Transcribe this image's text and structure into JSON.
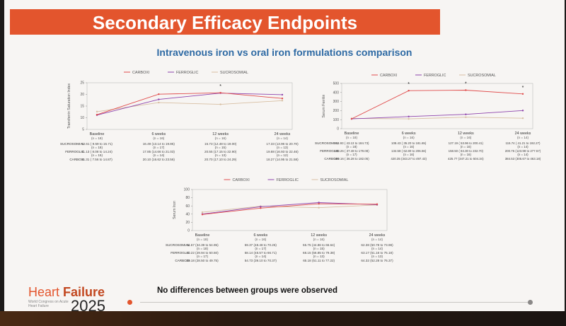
{
  "title": "Secondary Efficacy Endpoints",
  "subtitle": "Intravenous iron vs oral iron formulations comparison",
  "footer_message": "No differences between groups were observed",
  "logo": {
    "line1a": "Heart ",
    "line1b": "Failure",
    "small": "World Congress on Acute Heart Failure",
    "year": "2025"
  },
  "colors": {
    "accent": "#e3552d",
    "subtitle": "#2e6aa4",
    "carboxi": "#e04c4c",
    "ferroglic": "#8e44ad",
    "sucrosomial": "#d8bfa3"
  },
  "chart_data": [
    {
      "type": "line",
      "ylabel": "Transferrin Saturation Index",
      "ylim": [
        5,
        25
      ],
      "yticks": [
        "5",
        "10",
        "15",
        "20",
        "25"
      ],
      "categories": [
        "Baseline",
        "6 weeks",
        "12 weeks",
        "24 weeks"
      ],
      "n_labels": [
        "(n = 18)",
        "(n = 16)",
        "(n = 16)",
        "(n = 14)"
      ],
      "significance": [
        "",
        "",
        "*",
        ""
      ],
      "legend": [
        "CARBOXI",
        "FERROGLIC",
        "SUCROSOMIAL"
      ],
      "series": [
        {
          "name": "SUCROSOMIAL",
          "values": [
            12.61,
            16.49,
            15.73,
            17.33
          ]
        },
        {
          "name": "FERROGLIC",
          "values": [
            11.13,
            17.85,
            20.55,
            19.88
          ]
        },
        {
          "name": "CARBOXI",
          "values": [
            11.31,
            20.1,
            20.7,
            18.27
          ]
        }
      ],
      "table": [
        {
          "label": "SUCROSOMIAL",
          "cells": [
            [
              "12.61 ( 9.59 to 15.71)",
              "(n = 18)"
            ],
            [
              "16.49 (13.14 to 19.85)",
              "(n = 17)"
            ],
            [
              "15.73 (12.48 to 19.00)",
              "(n = 15)"
            ],
            [
              "17.33 (13.96 to 20.70)",
              "(n = 13)"
            ]
          ]
        },
        {
          "label": "FERROGLIC",
          "cells": [
            [
              "11.13 ( 8.08 to 14.24)",
              "(n = 15)"
            ],
            [
              "17.85 (14.66 to 21.03)",
              "(n = 14)"
            ],
            [
              "20.55 (17.15 to 22.90)",
              "(n = 13)"
            ],
            [
              "19.88 (16.93 to 22.46)",
              "(n = 12)"
            ]
          ]
        },
        {
          "label": "CARBOXI",
          "cells": [
            [
              "11.31 ( 7.56 to 14.87)"
            ],
            [
              "20.10 (16.62 to 23.56)"
            ],
            [
              "20.70 (17.10 to 24.29)"
            ],
            [
              "18.27 (14.95 to 21.58)"
            ]
          ]
        }
      ]
    },
    {
      "type": "line",
      "ylabel": "Serum Ferritin",
      "ylim": [
        0,
        500
      ],
      "yticks": [
        "0",
        "100",
        "200",
        "300",
        "400",
        "500"
      ],
      "categories": [
        "Baseline",
        "6 weeks",
        "12 weeks",
        "24 weeks"
      ],
      "n_labels": [
        "(n = 18)",
        "(n = 16)",
        "(n = 16)",
        "(n = 14)"
      ],
      "significance": [
        "",
        "*",
        "*",
        "*"
      ],
      "legend": [
        "CARBOXI",
        "FERROGLIC",
        "SUCROSOMIAL"
      ],
      "series": [
        {
          "name": "SUCROSOMIAL",
          "values": [
            113.93,
            108.43,
            127.19,
            115.74
          ]
        },
        {
          "name": "FERROGLIC",
          "values": [
            108.26,
            134.58,
            158.5,
            200.76
          ]
        },
        {
          "name": "CARBOXI",
          "values": [
            109.16,
            420.35,
            425.77,
            384.53
          ]
        }
      ],
      "table": [
        {
          "label": "SUCROSOMIAL",
          "cells": [
            [
              "113.93 ( 43.13 to 184.73)",
              "(n = 18)"
            ],
            [
              "108.43 ( 35.20 to 181.65)",
              "(n = 16)"
            ],
            [
              "127.19 ( 53.96 to 200.41)",
              "(n = 16)"
            ],
            [
              "115.74 ( 41.21 to 192.27)",
              "(n = 14)"
            ]
          ]
        },
        {
          "label": "FERROGLIC",
          "cells": [
            [
              "108.26 ( 37.48 to 179.08)",
              "(n = 17)"
            ],
            [
              "134.58 ( 62.80 to 206.56)",
              "(n = 16)"
            ],
            [
              "158.50 ( 84.30 to 232.70)",
              "(n = 16)"
            ],
            [
              "200.76 (123.98 to 277.57)",
              "(n = 14)"
            ]
          ]
        },
        {
          "label": "CARBOXI",
          "cells": [
            [
              "109.16 ( 36.28 to 182.05)"
            ],
            [
              "420.35 (343.27 to 497.43)"
            ],
            [
              "425.77 (347.21 to 504.34)"
            ],
            [
              "384.53 (305.67 to 463.18)"
            ]
          ]
        }
      ]
    },
    {
      "type": "line",
      "ylabel": "Serum Iron",
      "ylim": [
        0,
        100
      ],
      "yticks": [
        "0",
        "20",
        "40",
        "60",
        "80",
        "100"
      ],
      "categories": [
        "Baseline",
        "6 weeks",
        "12 weeks",
        "24 weeks"
      ],
      "n_labels": [
        "(n = 18)",
        "(n = 16)",
        "(n = 16)",
        "(n = 14)"
      ],
      "significance": [
        "",
        "",
        "",
        ""
      ],
      "legend": [
        "CARBOXI",
        "FERROGLIC",
        "SUCROSOMIAL"
      ],
      "series": [
        {
          "name": "SUCROSOMIAL",
          "values": [
            44.67,
            59.37,
            55.75,
            62.38
          ]
        },
        {
          "name": "FERROGLIC",
          "values": [
            40.22,
            58.14,
            68.15,
            63.17
          ]
        },
        {
          "name": "CARBOXI",
          "values": [
            39.18,
            54.73,
            65.18,
            64.32
          ]
        }
      ],
      "table": [
        {
          "label": "SUCROSOMIAL",
          "cells": [
            [
              "44.67 (34.39 to 54.95)",
              "(n = 18)"
            ],
            [
              "59.37 (48.48 to 70.26)",
              "(n = 17)"
            ],
            [
              "55.75 (44.86 to 66.64)",
              "(n = 15)"
            ],
            [
              "62.38 (50.78 to 73.98)",
              "(n = 14)"
            ]
          ]
        },
        {
          "label": "FERROGLIC",
          "cells": [
            [
              "40.22 (29.94 to 50.50)",
              "(n = 17)"
            ],
            [
              "58.14 (45.57 to 66.71)",
              "(n = 14)"
            ],
            [
              "68.15 (56.85 to 79.38)",
              "(n = 13)"
            ],
            [
              "63.17 (51.16 to 75.18)",
              "(n = 13)"
            ]
          ]
        },
        {
          "label": "CARBOXI",
          "cells": [
            [
              "39.18 (28.50 to 49.75)"
            ],
            [
              "54.73 (39.10 to 70.37)"
            ],
            [
              "65.18 (51.11 to 77.22)"
            ],
            [
              "64.32 (52.28 to 76.37)"
            ]
          ]
        }
      ]
    }
  ]
}
